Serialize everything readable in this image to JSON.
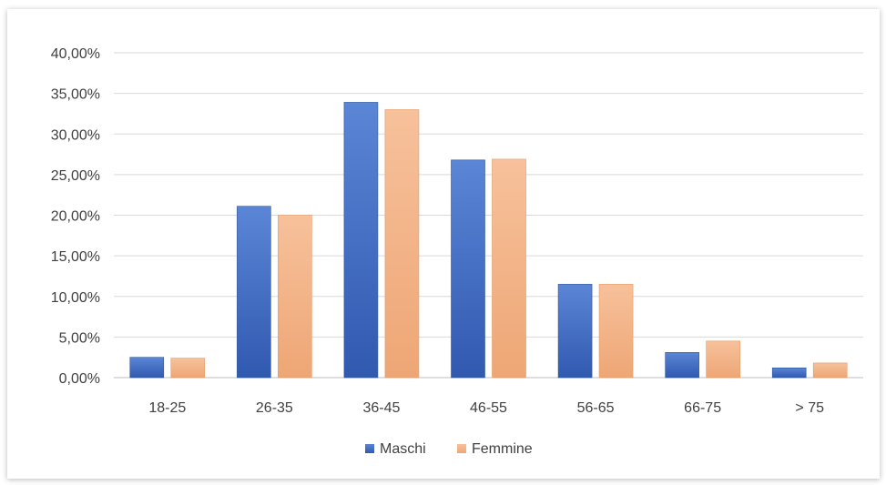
{
  "chart_data": {
    "type": "bar",
    "title": "",
    "xlabel": "",
    "ylabel": "",
    "categories": [
      "18-25",
      "26-35",
      "36-45",
      "46-55",
      "56-65",
      "66-75",
      "> 75"
    ],
    "series": [
      {
        "name": "Maschi",
        "color": "#4472c4",
        "values": [
          2.5,
          21.1,
          33.9,
          26.8,
          11.5,
          3.1,
          1.2
        ]
      },
      {
        "name": "Femmine",
        "color": "#f4b183",
        "values": [
          2.4,
          20.0,
          33.0,
          26.9,
          11.5,
          4.5,
          1.8
        ]
      }
    ],
    "ylim": [
      0,
      40
    ],
    "yticks": [
      0,
      5,
      10,
      15,
      20,
      25,
      30,
      35,
      40
    ],
    "ytick_labels": [
      "0,00%",
      "5,00%",
      "10,00%",
      "15,00%",
      "20,00%",
      "25,00%",
      "30,00%",
      "35,00%",
      "40,00%"
    ],
    "grid": true,
    "legend_position": "bottom"
  }
}
